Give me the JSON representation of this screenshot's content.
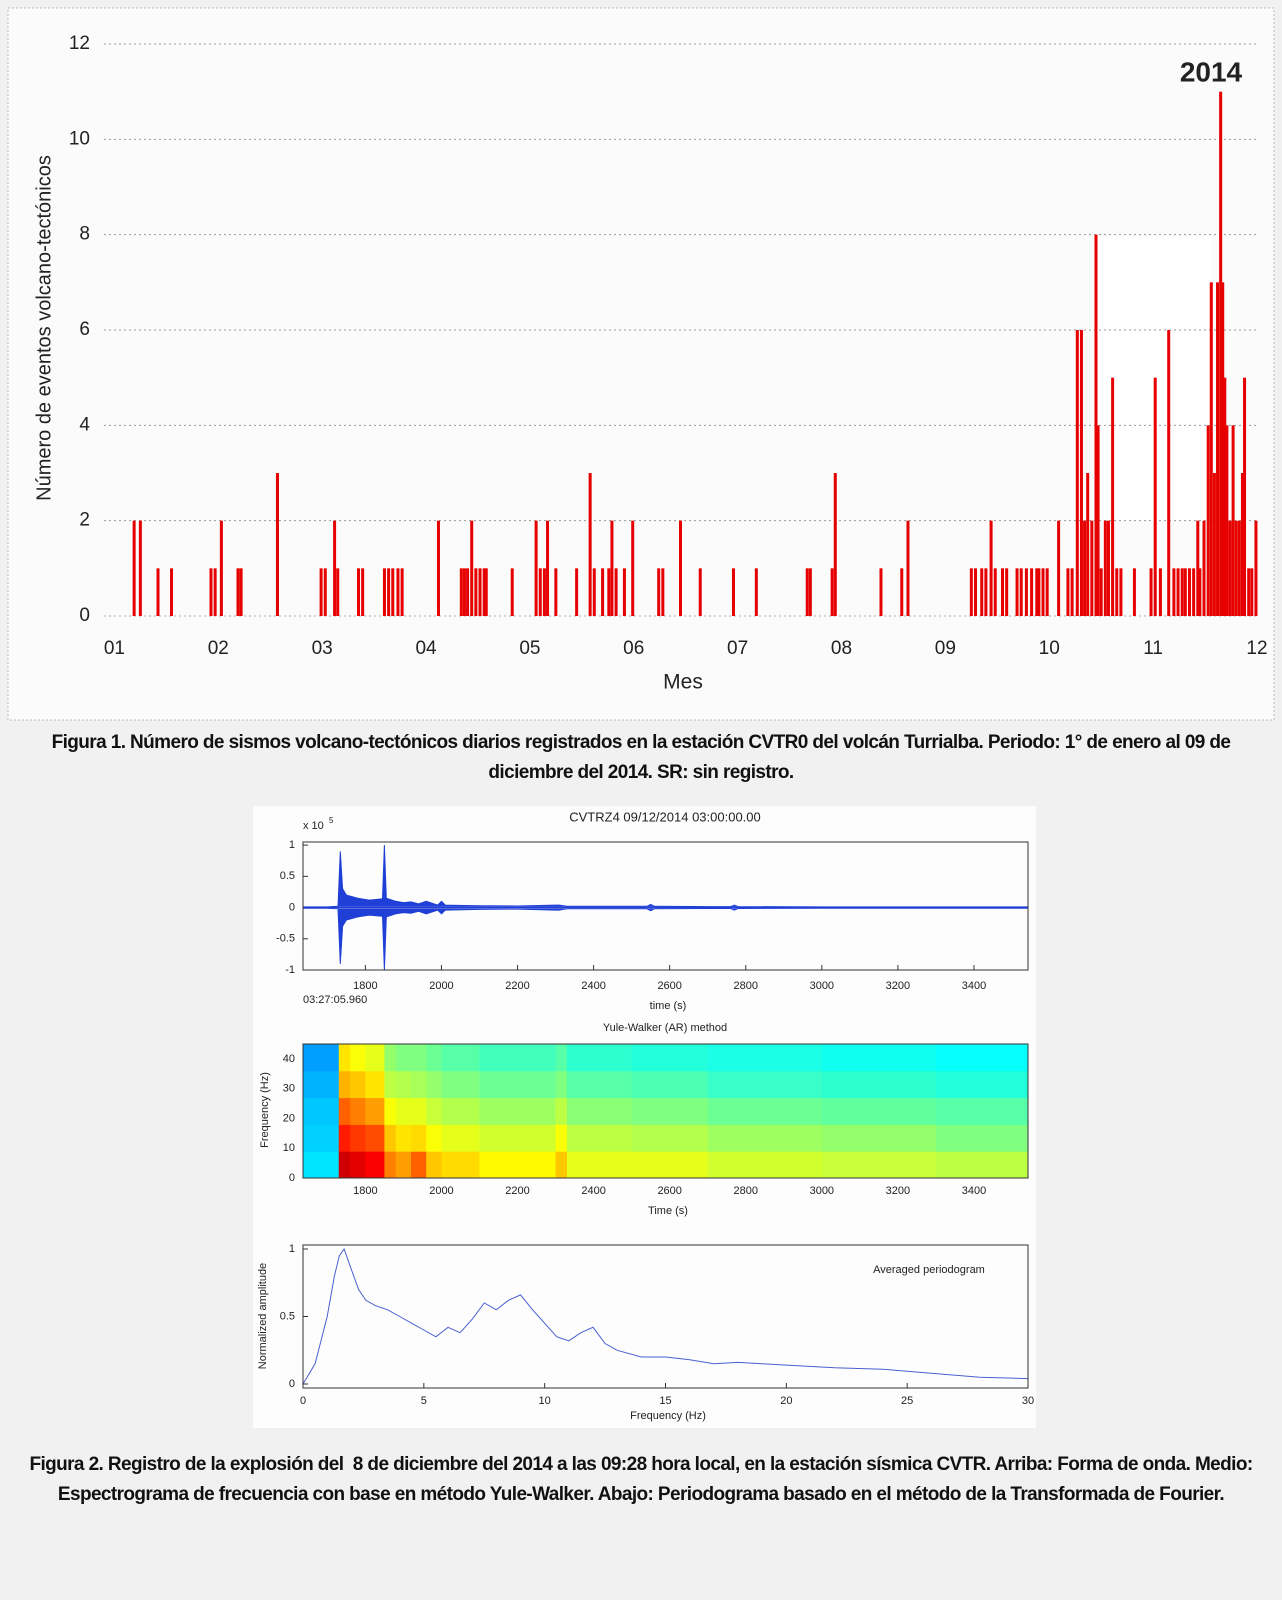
{
  "chart_data": [
    {
      "type": "bar",
      "title": "2014",
      "xlabel": "Mes",
      "ylabel": "Número de eventos volcano-tectónicos",
      "x": [
        1.19,
        1.25,
        1.42,
        1.55,
        1.93,
        1.97,
        2.03,
        2.19,
        2.22,
        2.57,
        2.99,
        3.03,
        3.12,
        3.15,
        3.35,
        3.39,
        3.6,
        3.64,
        3.68,
        3.73,
        3.77,
        4.12,
        4.34,
        4.37,
        4.4,
        4.44,
        4.48,
        4.52,
        4.56,
        4.58,
        4.83,
        5.06,
        5.1,
        5.14,
        5.17,
        5.25,
        5.45,
        5.58,
        5.62,
        5.7,
        5.76,
        5.79,
        5.83,
        5.91,
        5.99,
        6.24,
        6.28,
        6.45,
        6.64,
        6.96,
        7.18,
        7.67,
        7.7,
        7.91,
        7.94,
        8.38,
        8.58,
        8.64,
        9.25,
        9.29,
        9.35,
        9.39,
        9.44,
        9.48,
        9.55,
        9.59,
        9.69,
        9.73,
        9.78,
        9.83,
        9.88,
        9.9,
        9.94,
        9.98,
        10.09,
        10.18,
        10.22,
        10.27,
        10.31,
        10.34,
        10.37,
        10.41,
        10.45,
        10.47,
        10.5,
        10.54,
        10.57,
        10.61,
        10.65,
        10.69,
        10.82,
        10.98,
        11.02,
        11.07,
        11.15,
        11.2,
        11.24,
        11.28,
        11.31,
        11.35,
        11.39,
        11.43,
        11.45,
        11.49,
        11.53,
        11.56,
        11.59,
        11.62,
        11.65,
        11.67,
        11.69,
        11.71,
        11.74,
        11.77,
        11.8,
        11.83,
        11.86,
        11.88,
        11.92,
        11.95,
        11.99
      ],
      "values": [
        2,
        2,
        1,
        1,
        1,
        1,
        2,
        1,
        1,
        3,
        1,
        1,
        2,
        1,
        1,
        1,
        1,
        1,
        1,
        1,
        1,
        2,
        1,
        1,
        1,
        2,
        1,
        1,
        1,
        1,
        1,
        2,
        1,
        1,
        2,
        1,
        1,
        3,
        1,
        1,
        1,
        2,
        1,
        1,
        2,
        1,
        1,
        2,
        1,
        1,
        1,
        1,
        1,
        1,
        3,
        1,
        1,
        2,
        1,
        1,
        1,
        1,
        2,
        1,
        1,
        1,
        1,
        1,
        1,
        1,
        1,
        1,
        1,
        1,
        2,
        1,
        1,
        6,
        6,
        2,
        3,
        2,
        8,
        4,
        1,
        2,
        2,
        5,
        1,
        1,
        1,
        1,
        5,
        1,
        6,
        1,
        1,
        1,
        1,
        1,
        1,
        2,
        1,
        2,
        4,
        7,
        3,
        7,
        11,
        7,
        5,
        4,
        2,
        4,
        2,
        2,
        3,
        5,
        1,
        1,
        2
      ],
      "color": "#e60000",
      "xlim": [
        0.9,
        12
      ],
      "ylim": [
        0,
        12
      ],
      "xticks": [
        {
          "value": 1,
          "label": "01"
        },
        {
          "value": 2,
          "label": "02"
        },
        {
          "value": 3,
          "label": "03"
        },
        {
          "value": 4,
          "label": "04"
        },
        {
          "value": 5,
          "label": "05"
        },
        {
          "value": 6,
          "label": "06"
        },
        {
          "value": 7,
          "label": "07"
        },
        {
          "value": 8,
          "label": "08"
        },
        {
          "value": 9,
          "label": "09"
        },
        10,
        11,
        12
      ],
      "yticks": [
        0,
        2,
        4,
        6,
        8,
        10,
        12
      ],
      "grid": true
    },
    {
      "type": "waveform",
      "title": "CVTRZ4 09/12/2014  03:00:00.00",
      "xlabel": "time (s)",
      "scale_base": "x 10",
      "scale_exponent": "5",
      "time_label": "03:27:05.960",
      "x": [
        1636,
        1700,
        1728,
        1734,
        1740,
        1750,
        1780,
        1810,
        1845,
        1850,
        1855,
        1880,
        1900,
        1920,
        1940,
        1960,
        1990,
        2000,
        2010,
        2100,
        2200,
        2300,
        2310,
        2330,
        2400,
        2540,
        2550,
        2560,
        2700,
        2760,
        2770,
        2780,
        3000,
        3300,
        3542
      ],
      "values": [
        0.01,
        0.01,
        0.02,
        0.9,
        0.3,
        0.2,
        0.15,
        0.12,
        0.14,
        1.0,
        0.15,
        0.1,
        0.08,
        0.09,
        0.06,
        0.1,
        0.04,
        0.1,
        0.04,
        0.03,
        0.025,
        0.04,
        0.04,
        0.02,
        0.02,
        0.02,
        0.05,
        0.02,
        0.015,
        0.015,
        0.04,
        0.015,
        0.01,
        0.01,
        0.01
      ],
      "color": "#1f3fd6",
      "xlim": [
        1636,
        3542
      ],
      "ylim": [
        -1,
        1.05
      ],
      "xticks": [
        1800,
        2000,
        2200,
        2400,
        2600,
        2800,
        3000,
        3200,
        3400
      ],
      "yticks": [
        1,
        0.5,
        0,
        -0.5,
        -1
      ]
    },
    {
      "type": "heatmap",
      "title": "Yule-Walker (AR) method",
      "xlabel": "Time (s)",
      "ylabel": "Frequency (Hz)",
      "colormap": "jet",
      "x_edges": [
        1636,
        1730,
        1760,
        1800,
        1850,
        1880,
        1920,
        1960,
        2000,
        2100,
        2300,
        2330,
        2500,
        2700,
        3000,
        3300,
        3542
      ],
      "y_edges": [
        0,
        9,
        18,
        27,
        36,
        45
      ],
      "z": [
        [
          0.35,
          0.33,
          0.32,
          0.3,
          0.28
        ],
        [
          0.92,
          0.85,
          0.78,
          0.7,
          0.65
        ],
        [
          0.9,
          0.82,
          0.75,
          0.68,
          0.62
        ],
        [
          0.88,
          0.8,
          0.72,
          0.65,
          0.6
        ],
        [
          0.75,
          0.68,
          0.62,
          0.56,
          0.52
        ],
        [
          0.72,
          0.65,
          0.6,
          0.55,
          0.5
        ],
        [
          0.78,
          0.66,
          0.6,
          0.54,
          0.5
        ],
        [
          0.68,
          0.62,
          0.57,
          0.52,
          0.48
        ],
        [
          0.66,
          0.6,
          0.55,
          0.5,
          0.46
        ],
        [
          0.63,
          0.58,
          0.53,
          0.48,
          0.44
        ],
        [
          0.68,
          0.62,
          0.56,
          0.5,
          0.46
        ],
        [
          0.6,
          0.56,
          0.51,
          0.46,
          0.42
        ],
        [
          0.6,
          0.55,
          0.5,
          0.45,
          0.41
        ],
        [
          0.58,
          0.53,
          0.48,
          0.43,
          0.4
        ],
        [
          0.57,
          0.52,
          0.47,
          0.42,
          0.39
        ],
        [
          0.56,
          0.5,
          0.46,
          0.41,
          0.38
        ]
      ],
      "xlim": [
        1636,
        3542
      ],
      "ylim": [
        0,
        45
      ],
      "xticks": [
        1800,
        2000,
        2200,
        2400,
        2600,
        2800,
        3000,
        3200,
        3400
      ],
      "yticks": [
        0,
        10,
        20,
        30,
        40
      ]
    },
    {
      "type": "line",
      "annotation": "Averaged periodogram",
      "xlabel": "Frequency (Hz)",
      "ylabel": "Normalized amplitude",
      "x": [
        0,
        0.5,
        1,
        1.3,
        1.5,
        1.7,
        2,
        2.3,
        2.6,
        3,
        3.5,
        4,
        4.5,
        5,
        5.5,
        6,
        6.5,
        7,
        7.5,
        8,
        8.5,
        9,
        9.5,
        10,
        10.5,
        11,
        11.5,
        12,
        12.5,
        13,
        14,
        15,
        16,
        17,
        18,
        19,
        20,
        22,
        24,
        26,
        28,
        30
      ],
      "values": [
        0,
        0.15,
        0.5,
        0.8,
        0.95,
        1.0,
        0.85,
        0.7,
        0.62,
        0.58,
        0.55,
        0.5,
        0.45,
        0.4,
        0.35,
        0.42,
        0.38,
        0.48,
        0.6,
        0.55,
        0.62,
        0.66,
        0.55,
        0.45,
        0.35,
        0.32,
        0.38,
        0.42,
        0.3,
        0.25,
        0.2,
        0.2,
        0.18,
        0.15,
        0.16,
        0.15,
        0.14,
        0.12,
        0.11,
        0.08,
        0.05,
        0.04
      ],
      "color": "#4a5fd0",
      "xlim": [
        0,
        30
      ],
      "ylim": [
        0,
        1
      ],
      "xticks": [
        0,
        5,
        10,
        15,
        20,
        25,
        30
      ],
      "yticks": [
        0,
        0.5,
        1
      ]
    }
  ],
  "captions": [
    "Figura 1. Número de sismos volcano-tectónicos diarios registrados en la estación CVTR0 del volcán Turrialba. Periodo: 1° de enero al 09 de diciembre del 2014. SR: sin registro.",
    "Figura 2. Registro de la explosión del  8 de diciembre del 2014 a las 09:28 hora local, en la estación sísmica CVTR. Arriba: Forma de onda. Medio: Espectrograma de frecuencia con base en método Yule-Walker. Abajo: Periodograma basado en el método de la Transformada de Fourier."
  ]
}
